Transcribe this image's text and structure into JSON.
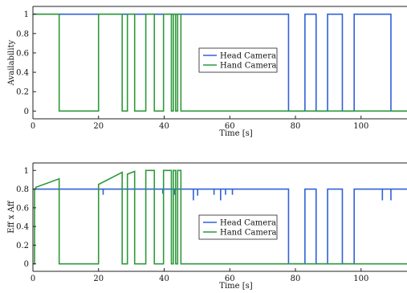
{
  "colors": {
    "head": "#3060d8",
    "hand": "#2e9a3a",
    "axis": "#222222"
  },
  "chart_data": [
    {
      "type": "line",
      "ylabel": "Availability",
      "xlabel": "Time [s]",
      "xlim": [
        0,
        114
      ],
      "ylim": [
        -0.08,
        1.08
      ],
      "xticks": [
        "0",
        "20",
        "40",
        "60",
        "80",
        "100"
      ],
      "yticks": [
        "0",
        "0.2",
        "0.4",
        "0.6",
        "0.8",
        "1"
      ],
      "legend_position": "center-right",
      "series": [
        {
          "name": "Head Camera",
          "color": "#3060d8",
          "x": [
            0,
            77.9,
            77.9,
            82.9,
            82.9,
            86.3,
            86.3,
            89.8,
            89.8,
            94.3,
            94.3,
            97.9,
            97.9,
            109.1,
            109.1,
            114
          ],
          "y": [
            1,
            1,
            0,
            0,
            1,
            1,
            0,
            0,
            1,
            1,
            0,
            0,
            1,
            1,
            0,
            0
          ]
        },
        {
          "name": "Hand Camera",
          "color": "#2e9a3a",
          "x": [
            0,
            8,
            8,
            20,
            20,
            27.2,
            27.2,
            28.8,
            28.8,
            31,
            31,
            34.4,
            34.4,
            37,
            37,
            39.8,
            39.8,
            42.2,
            42.2,
            42.8,
            42.8,
            43.5,
            43.5,
            44.1,
            44.1,
            45.1,
            45.1,
            45.8,
            45.8,
            114
          ],
          "y": [
            1,
            1,
            0,
            0,
            1,
            1,
            0,
            0,
            1,
            1,
            0,
            0,
            1,
            1,
            0,
            0,
            1,
            1,
            0,
            0,
            1,
            1,
            0,
            0,
            1,
            1,
            0,
            0,
            0,
            0
          ]
        }
      ]
    },
    {
      "type": "line",
      "ylabel": "Eff x Aff",
      "xlabel": "Time [s]",
      "xlim": [
        0,
        114
      ],
      "ylim": [
        -0.08,
        1.08
      ],
      "xticks": [
        "0",
        "20",
        "40",
        "60",
        "80",
        "100"
      ],
      "yticks": [
        "0",
        "0.2",
        "0.4",
        "0.6",
        "0.8",
        "1"
      ],
      "legend_position": "center-right",
      "series": [
        {
          "name": "Head Camera",
          "color": "#3060d8",
          "x": [
            0,
            21.4,
            21.4,
            21.4,
            21.4,
            39.6,
            39.6,
            39.6,
            39.6,
            43.2,
            43.2,
            43.2,
            43.2,
            48.9,
            48.9,
            48.9,
            48.9,
            50.2,
            50.2,
            50.2,
            50.2,
            55.2,
            55.2,
            55.2,
            55.2,
            57.2,
            57.2,
            57.2,
            57.2,
            58.7,
            58.7,
            58.7,
            58.7,
            60.8,
            60.8,
            60.8,
            60.8,
            77.9,
            77.9,
            82.9,
            82.9,
            86.3,
            86.3,
            89.8,
            89.8,
            94.3,
            94.3,
            97.9,
            97.9,
            106.5,
            106.5,
            106.5,
            106.5,
            109.1,
            109.1,
            109.1,
            109.1,
            114
          ],
          "y": [
            0.8,
            0.8,
            0.74,
            0.74,
            0.8,
            0.8,
            0.75,
            0.75,
            0.8,
            0.8,
            0.74,
            0.74,
            0.8,
            0.8,
            0.68,
            0.68,
            0.8,
            0.8,
            0.73,
            0.73,
            0.8,
            0.8,
            0.74,
            0.74,
            0.8,
            0.8,
            0.68,
            0.68,
            0.8,
            0.8,
            0.74,
            0.74,
            0.8,
            0.8,
            0.74,
            0.74,
            0.8,
            0.8,
            0,
            0,
            0.8,
            0.8,
            0,
            0,
            0.8,
            0.8,
            0,
            0,
            0.8,
            0.8,
            0.68,
            0.68,
            0.8,
            0.8,
            0.68,
            0.68,
            0.8,
            0.8
          ]
        },
        {
          "name": "Hand Camera",
          "color": "#2e9a3a",
          "x": [
            0,
            0.5,
            0.5,
            0.9,
            0.9,
            8,
            8,
            20,
            20,
            27.2,
            27.2,
            28.8,
            28.8,
            31,
            31,
            34.4,
            34.4,
            37,
            37,
            39.8,
            39.8,
            42.2,
            42.2,
            42.8,
            42.8,
            43.5,
            43.5,
            44.1,
            44.1,
            45.1,
            45.1,
            45.8,
            45.8,
            114
          ],
          "y": [
            0,
            0,
            0.8,
            0.8,
            0.82,
            0.91,
            0,
            0,
            0.85,
            0.98,
            0,
            0,
            0.96,
            0.99,
            0,
            0,
            1,
            1,
            0,
            0,
            1,
            1,
            0,
            0,
            1,
            1,
            0,
            0,
            1,
            1,
            0,
            0,
            0,
            0
          ]
        }
      ]
    }
  ]
}
